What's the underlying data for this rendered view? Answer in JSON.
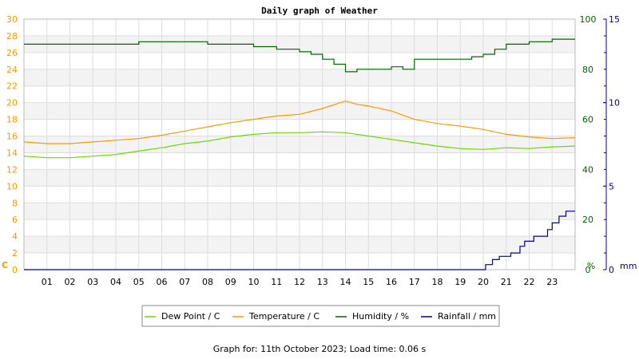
{
  "footer": {
    "text": "Graph for: 11th October 2023; Load time: 0.06 s"
  },
  "chart_data": {
    "type": "line",
    "title": "Daily graph of Weather",
    "grid": true,
    "legend_position": "bottom",
    "x_ticks": [
      "01",
      "02",
      "03",
      "04",
      "05",
      "06",
      "07",
      "08",
      "09",
      "10",
      "11",
      "12",
      "13",
      "14",
      "15",
      "16",
      "17",
      "18",
      "19",
      "20",
      "21",
      "22",
      "23"
    ],
    "axes": {
      "left": {
        "unit": "C",
        "ticks": [
          "0",
          "2",
          "4",
          "6",
          "8",
          "10",
          "12",
          "14",
          "16",
          "18",
          "20",
          "22",
          "24",
          "26",
          "28",
          "30"
        ],
        "min": 0,
        "max": 30,
        "color": "#ff9900"
      },
      "right1": {
        "unit": "%",
        "ticks": [
          "0",
          "20",
          "40",
          "60",
          "80",
          "100"
        ],
        "min": 0,
        "max": 100,
        "color": "#006600"
      },
      "right2": {
        "unit": "mm",
        "ticks": [
          "0",
          "5",
          "10",
          "15"
        ],
        "min": 0,
        "max": 15,
        "color": "#000099"
      }
    },
    "series": [
      {
        "name": "Dew Point / C",
        "axis": "left",
        "color": "#66dd00",
        "x": [
          0,
          1,
          2,
          3,
          4,
          5,
          6,
          7,
          8,
          9,
          10,
          11,
          12,
          13,
          14,
          15,
          16,
          17,
          18,
          19,
          20,
          21,
          22,
          23,
          24
        ],
        "values": [
          13.6,
          13.4,
          13.4,
          13.6,
          13.8,
          14.2,
          14.6,
          15.1,
          15.4,
          15.9,
          16.2,
          16.4,
          16.4,
          16.5,
          16.4,
          16.0,
          15.6,
          15.2,
          14.8,
          14.5,
          14.4,
          14.6,
          14.5,
          14.7,
          14.8
        ]
      },
      {
        "name": "Temperature / C",
        "axis": "left",
        "color": "#ff9900",
        "x": [
          0,
          1,
          2,
          3,
          4,
          5,
          6,
          7,
          8,
          9,
          10,
          11,
          12,
          13,
          14,
          14.5,
          15,
          16,
          17,
          18,
          19,
          20,
          21,
          22,
          23,
          24
        ],
        "values": [
          15.3,
          15.1,
          15.1,
          15.3,
          15.5,
          15.7,
          16.1,
          16.6,
          17.1,
          17.6,
          18.0,
          18.4,
          18.6,
          19.3,
          20.2,
          19.8,
          19.6,
          19.0,
          18.0,
          17.5,
          17.2,
          16.8,
          16.2,
          15.9,
          15.7,
          15.8
        ]
      },
      {
        "name": "Humidity / %",
        "axis": "right1",
        "color": "#006600",
        "x": [
          0,
          3,
          4,
          5,
          6,
          7,
          8,
          9,
          10,
          11,
          12,
          12.5,
          13,
          13.5,
          14,
          14.5,
          15,
          16,
          16.5,
          17,
          18,
          19,
          19.5,
          20,
          20.5,
          21,
          22,
          23,
          24
        ],
        "values": [
          90,
          90,
          90,
          91,
          91,
          91,
          90,
          90,
          89,
          88,
          87,
          86,
          84,
          82,
          79,
          80,
          80,
          81,
          80,
          84,
          84,
          84,
          85,
          86,
          88,
          90,
          91,
          92,
          92
        ]
      },
      {
        "name": "Rainfall / mm",
        "axis": "right2",
        "color": "#000099",
        "x": [
          0,
          19.9,
          20.1,
          20.4,
          20.7,
          21.2,
          21.6,
          21.8,
          22.2,
          22.8,
          23.0,
          23.3,
          23.6,
          24
        ],
        "values": [
          0,
          0,
          0.3,
          0.6,
          0.8,
          1.0,
          1.4,
          1.7,
          2.0,
          2.4,
          2.8,
          3.2,
          3.5,
          3.5
        ]
      }
    ]
  }
}
